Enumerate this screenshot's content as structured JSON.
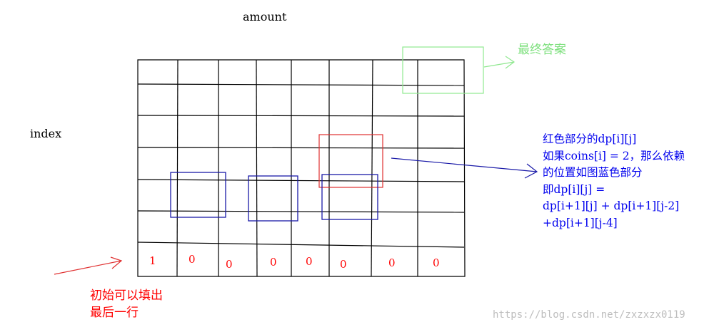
{
  "axis_top": "amount",
  "axis_left": "index",
  "final_answer_label": "最终答案",
  "dependency_note": [
    "红色部分的dp[i][j]",
    "如果coins[i] = 2，那么依赖",
    "的位置如图蓝色部分",
    "即dp[i][j] =",
    "dp[i+1][j] + dp[i+1][j-2]",
    "+dp[i+1][j-4]"
  ],
  "init_note": [
    "初始可以填出",
    "最后一行"
  ],
  "last_row_values": [
    "1",
    "0",
    "0",
    "0",
    "0",
    "0",
    "0",
    "0"
  ],
  "watermark": "https://blog.csdn.net/zxzxzx0119",
  "colors": {
    "grid": "#000000",
    "target_cell": "#e03030",
    "dependency_cells": "#1a1aa8",
    "answer_cell": "#90e890",
    "annotation_blue": "#0000ee",
    "annotation_red": "#ff0000"
  }
}
